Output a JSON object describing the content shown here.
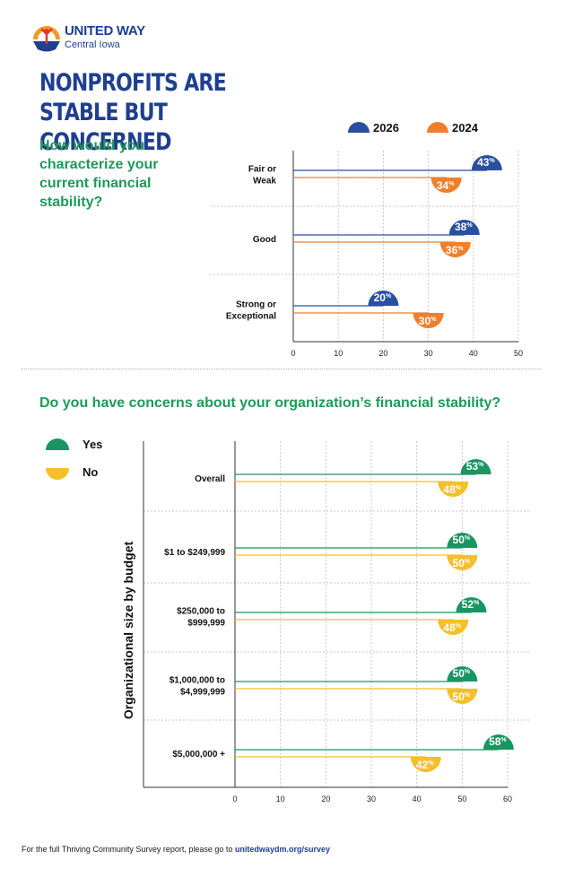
{
  "logo": {
    "name": "UNITED WAY",
    "sub": "Central Iowa"
  },
  "title": "NONPROFITS ARE STABLE BUT CONCERNED",
  "footer": {
    "text": "For the full Thriving Community Survey report, please go to ",
    "link": "unitedwaydm.org/survey"
  },
  "colors": {
    "blue": "#2a4fa0",
    "orange": "#ee7f2d",
    "green": "#1a9562",
    "yellow": "#f4bf2a",
    "heading": "#1f3f8f",
    "question": "#1e9a58"
  },
  "chart_data": [
    {
      "type": "bar",
      "orientation": "horizontal",
      "title": "How would you characterize your current financial stability?",
      "categories": [
        "Fair or Weak",
        "Good",
        "Strong or Exceptional"
      ],
      "category_lines": [
        [
          "Fair or",
          "Weak"
        ],
        [
          "Good"
        ],
        [
          "Strong or",
          "Exceptional"
        ]
      ],
      "series": [
        {
          "name": "2026",
          "values": [
            43,
            38,
            20
          ],
          "color": "#2a4fa0"
        },
        {
          "name": "2024",
          "values": [
            34,
            36,
            30
          ],
          "color": "#ee7f2d"
        }
      ],
      "xlim": [
        0,
        50
      ],
      "xticks": [
        0,
        10,
        20,
        30,
        40,
        50
      ],
      "legend": "top",
      "grid": true
    },
    {
      "type": "bar",
      "orientation": "horizontal",
      "title": "Do you have concerns about your organization’s financial stability?",
      "ylabel": "Organizational size by budget",
      "categories": [
        "Overall",
        "$1 to $249,999",
        "$250,000 to $999,999",
        "$1,000,000 to $4,999,999",
        "$5,000,000 +"
      ],
      "category_lines": [
        [
          "Overall"
        ],
        [
          "$1 to $249,999"
        ],
        [
          "$250,000 to",
          "$999,999"
        ],
        [
          "$1,000,000 to",
          "$4,999,999"
        ],
        [
          "$5,000,000 +"
        ]
      ],
      "series": [
        {
          "name": "Yes",
          "values": [
            53,
            50,
            52,
            50,
            58
          ],
          "color": "#1a9562"
        },
        {
          "name": "No",
          "values": [
            48,
            50,
            48,
            50,
            42
          ],
          "color": "#f4bf2a"
        }
      ],
      "xlim": [
        0,
        60
      ],
      "xticks": [
        0,
        10,
        20,
        30,
        40,
        50,
        60
      ],
      "legend": "left",
      "grid": true
    }
  ]
}
